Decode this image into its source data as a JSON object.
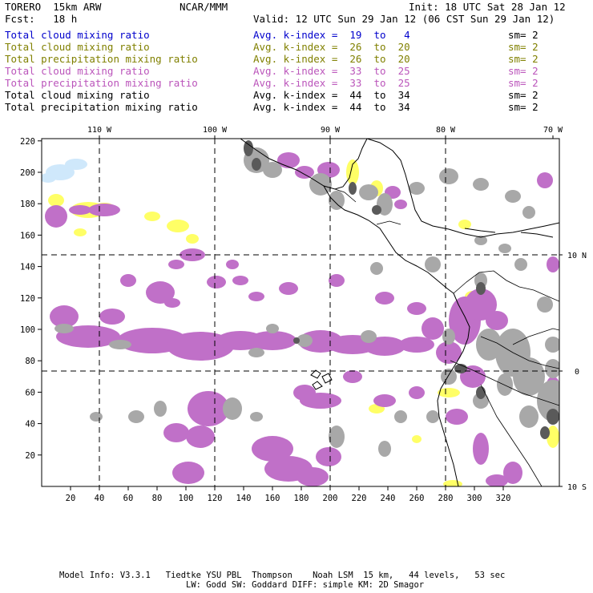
{
  "header": {
    "model": "TORERO  15km ARW",
    "org": "NCAR/MMM",
    "init": "Init: 18 UTC Sat 28 Jan 12",
    "fcst": "Fcst:   18 h",
    "valid": "Valid: 12 UTC Sun 29 Jan 12 (06 CST Sun 29 Jan 12)"
  },
  "legend": [
    {
      "field": "Total cloud mixing ratio",
      "index": "Avg. k-index =  19  to   4",
      "sm": "sm= 2",
      "color": "#0000cc"
    },
    {
      "field": "Total cloud mixing ratio",
      "index": "Avg. k-index =  26  to  20",
      "sm": "sm= 2",
      "color": "#808000"
    },
    {
      "field": "Total precipitation mixing ratio",
      "index": "Avg. k-index =  26  to  20",
      "sm": "sm= 2",
      "color": "#808000"
    },
    {
      "field": "Total cloud mixing ratio",
      "index": "Avg. k-index =  33  to  25",
      "sm": "sm= 2",
      "color": "#bb55bb"
    },
    {
      "field": "Total precipitation mixing ratio",
      "index": "Avg. k-index =  33  to  25",
      "sm": "sm= 2",
      "color": "#bb55bb"
    },
    {
      "field": "Total cloud mixing ratio",
      "index": "Avg. k-index =  44  to  34",
      "sm": "sm= 2",
      "color": "#000000"
    },
    {
      "field": "Total precipitation mixing ratio",
      "index": "Avg. k-index =  44  to  34",
      "sm": "sm= 2",
      "color": "#000000"
    }
  ],
  "map": {
    "top_lon_labels": [
      "110 W",
      "100 W",
      "90 W",
      "80 W",
      "70 W"
    ],
    "right_lat_labels": [
      "10 N",
      "0",
      "10 S"
    ],
    "y_ticks": [
      "220",
      "200",
      "180",
      "160",
      "140",
      "120",
      "100",
      "80",
      "60",
      "40",
      "20"
    ],
    "x_ticks": [
      "20",
      "40",
      "60",
      "80",
      "100",
      "120",
      "140",
      "160",
      "180",
      "200",
      "220",
      "240",
      "260",
      "280",
      "300",
      "320"
    ],
    "colors": {
      "light_blue": "#cfe8fb",
      "yellow": "#ffff66",
      "purple": "#c070c8",
      "gray": "#a8a8a8",
      "dark_gray": "#5a5a5a"
    }
  },
  "footer": {
    "line1": "Model Info: V3.3.1   Tiedtke YSU PBL  Thompson    Noah LSM  15 km,   44 levels,   53 sec",
    "line2": "LW: Godd SW: Goddard DIFF: simple KM: 2D Smagor"
  }
}
